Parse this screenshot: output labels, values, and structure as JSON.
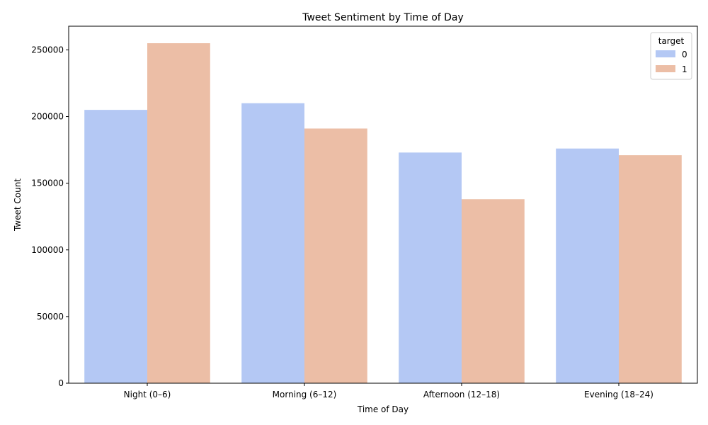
{
  "chart_data": {
    "type": "bar",
    "title": "Tweet Sentiment by Time of Day",
    "xlabel": "Time of Day",
    "ylabel": "Tweet Count",
    "categories": [
      "Night (0–6)",
      "Morning (6–12)",
      "Afternoon (12–18)",
      "Evening (18–24)"
    ],
    "series": [
      {
        "name": "0",
        "values": [
          205000,
          210000,
          173000,
          176000
        ],
        "color": "#b4c8f4"
      },
      {
        "name": "1",
        "values": [
          255000,
          191000,
          138000,
          171000
        ],
        "color": "#ecbea6"
      }
    ],
    "ylim": [
      0,
      267750
    ],
    "yticks": [
      0,
      50000,
      100000,
      150000,
      200000,
      250000
    ],
    "legend": {
      "title": "target",
      "position": "top-right"
    },
    "grid": false
  }
}
